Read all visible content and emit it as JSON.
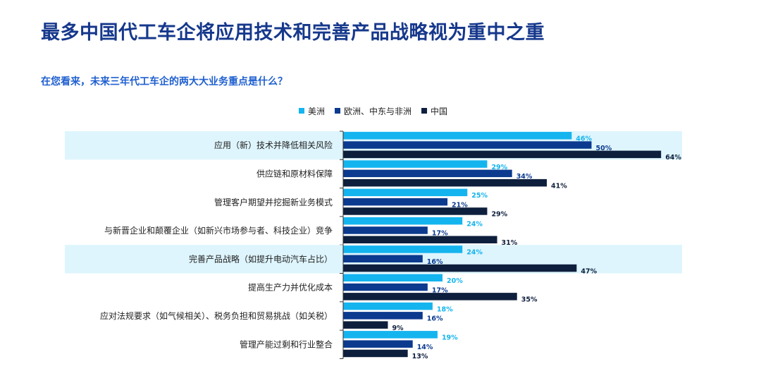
{
  "title": "最多中国代工车企将应用技术和完善产品战略视为重中之重",
  "subtitle": "在您看来，未来三年代工车企的两大大业务重点是什么？",
  "colors": {
    "americas": "#14b4ef",
    "emea": "#0b3a8e",
    "china": "#0e1f3d",
    "highlight": "#def5fd",
    "title": "#16388c",
    "subtitle": "#1f5fd0"
  },
  "chart_data": {
    "type": "bar",
    "orientation": "horizontal",
    "categories": [
      "应用（新）技术并降低相关风险",
      "供应链和原材料保障",
      "管理客户期望并挖掘新业务模式",
      "与新晋企业和颠覆企业（如新兴市场参与者、科技企业）竞争",
      "完善产品战略（如提升电动汽车占比）",
      "提高生产力并优化成本",
      "应对法规要求（如气候相关）、税务负担和贸易挑战（如关税）",
      "管理产能过剩和行业整合"
    ],
    "highlighted_categories": [
      0,
      4
    ],
    "series": [
      {
        "name": "美洲",
        "values": [
          46,
          29,
          25,
          24,
          24,
          20,
          18,
          19
        ]
      },
      {
        "name": "欧洲、中东与非洲",
        "values": [
          50,
          34,
          21,
          17,
          16,
          17,
          16,
          14
        ]
      },
      {
        "name": "中国",
        "values": [
          64,
          41,
          29,
          31,
          47,
          35,
          9,
          13
        ]
      }
    ],
    "value_format": "%",
    "legend_placement": "top",
    "grid": false
  }
}
